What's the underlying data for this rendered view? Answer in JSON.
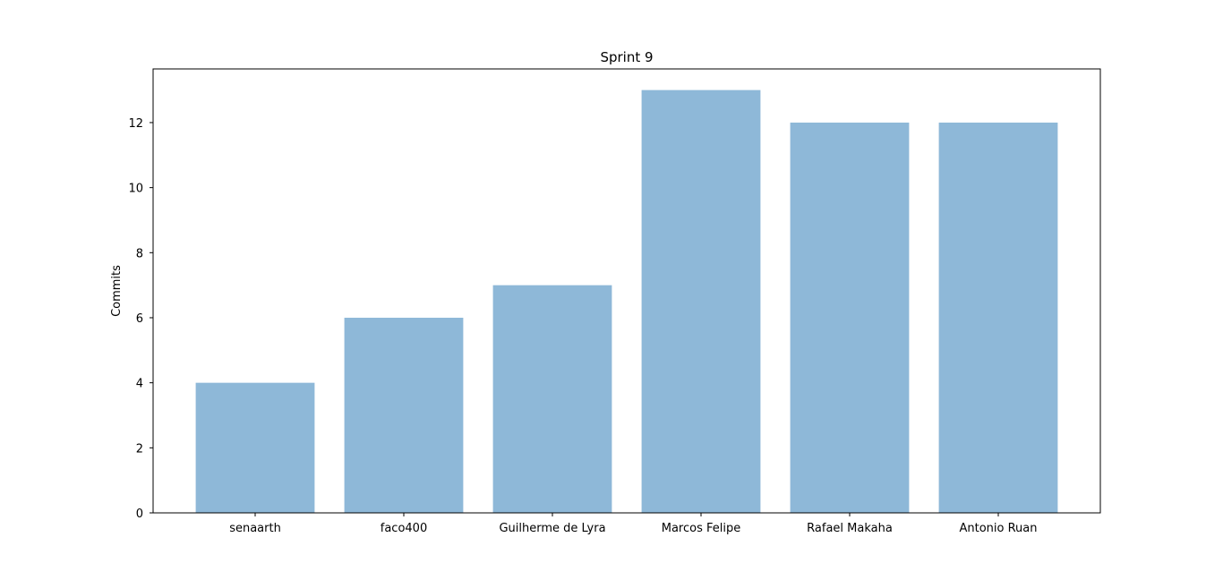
{
  "chart_data": {
    "type": "bar",
    "title": "Sprint 9",
    "xlabel": "",
    "ylabel": "Commits",
    "categories": [
      "senaarth",
      "faco400",
      "Guilherme de Lyra",
      "Marcos Felipe",
      "Rafael Makaha",
      "Antonio Ruan"
    ],
    "values": [
      4,
      6,
      7,
      13,
      12,
      12
    ],
    "ylim": [
      0,
      13.65
    ],
    "yticks": [
      0,
      2,
      4,
      6,
      8,
      10,
      12
    ],
    "grid": false,
    "legend": "none",
    "colors": {
      "bar": "#8eb8d8",
      "axis": "#000000",
      "background": "#ffffff"
    }
  }
}
